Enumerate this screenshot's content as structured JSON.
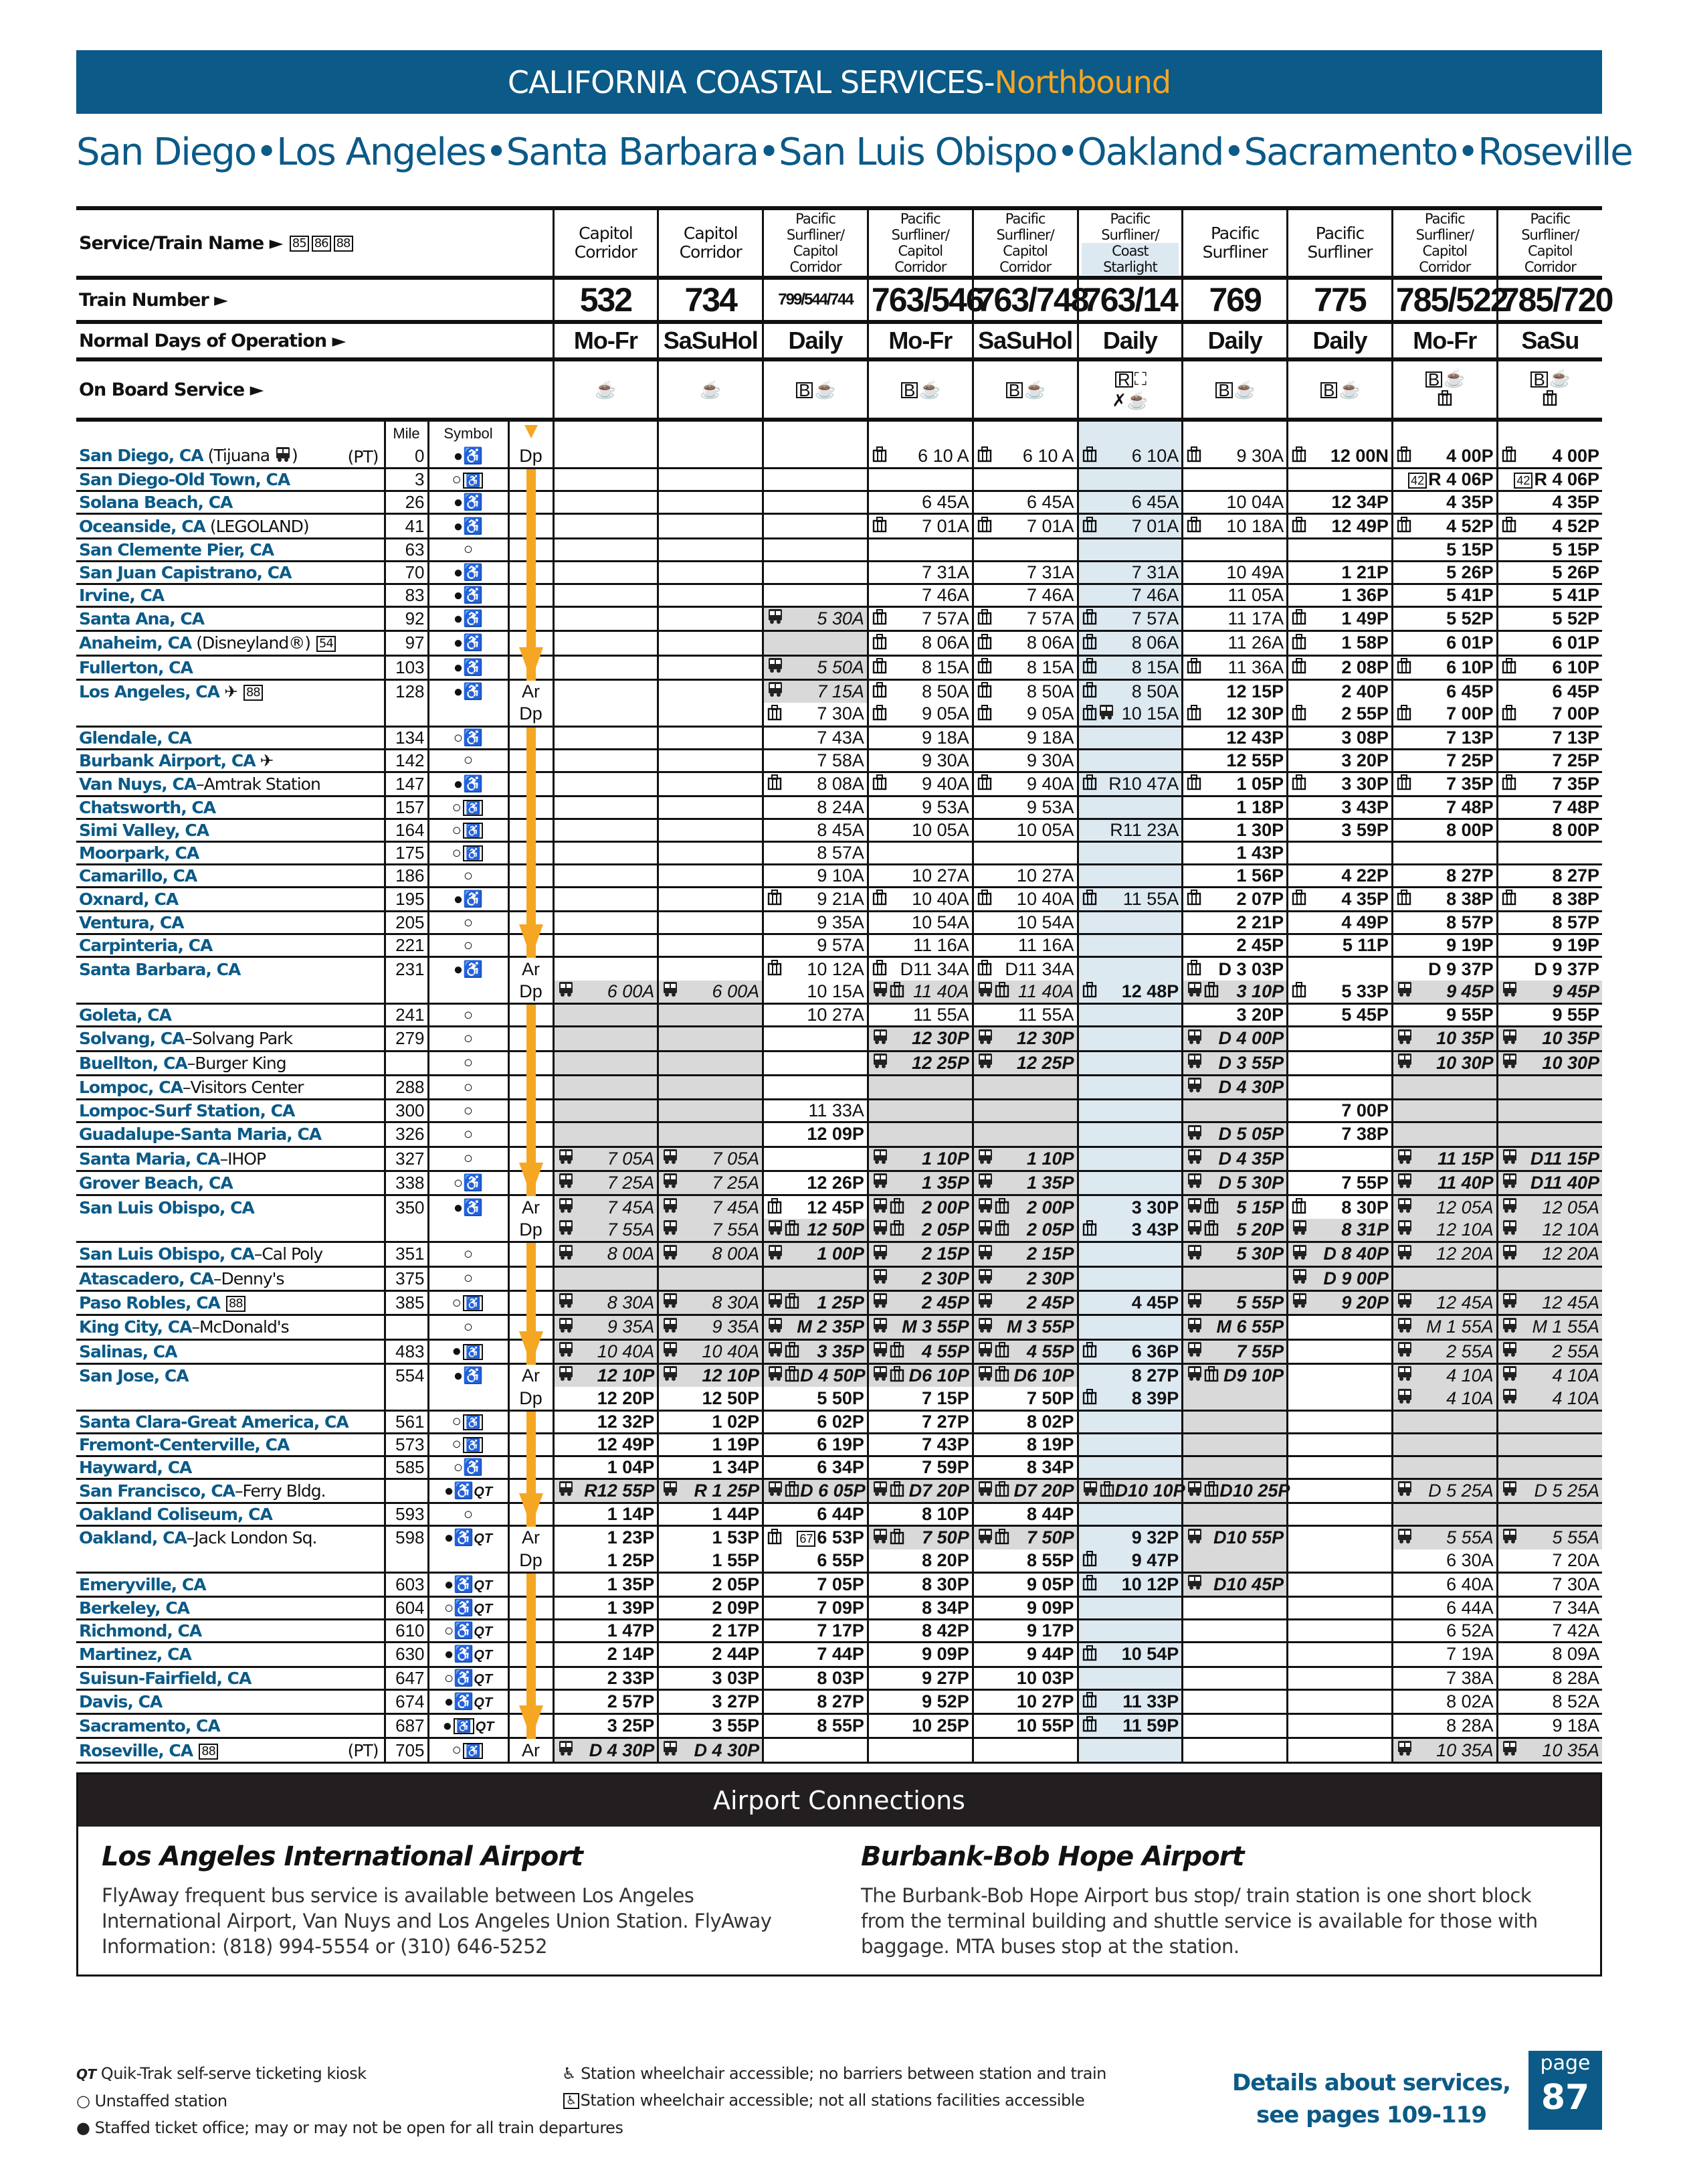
{
  "title": {
    "main": "CALIFORNIA COASTAL SERVICES-",
    "direction": "Northbound"
  },
  "route": [
    "San Diego",
    "•",
    "Los Angeles",
    "•",
    "Santa Barbara",
    "•",
    "San Luis Obispo",
    "•",
    "Oakland",
    "•",
    "Sacramento",
    "•",
    "Roseville"
  ],
  "labels": {
    "service": "Service/Train Name ►",
    "service_notes": [
      "85",
      "86",
      "88"
    ],
    "train_number": "Train Number ►",
    "days": "Normal Days of Operation ►",
    "onboard": "On Board Service ►",
    "mile": "Mile",
    "symbol": "Symbol"
  },
  "colors": {
    "brand": "#0b5a87",
    "accent": "#f5a623",
    "thruway_bus_shading": "#d9d9d9",
    "coast_starlight_shading": "#dde9f1"
  },
  "columns": [
    {
      "service": [
        "Capitol",
        "Corridor"
      ],
      "number": "532",
      "days": "Mo-Fr",
      "onboard": [
        "cafe"
      ]
    },
    {
      "service": [
        "Capitol",
        "Corridor"
      ],
      "number": "734",
      "days": "SaSuHol",
      "onboard": [
        "cafe"
      ]
    },
    {
      "service": [
        "Pacific",
        "Surfliner/",
        "Capitol",
        "Corridor"
      ],
      "number": "799/544/744",
      "days": "Daily",
      "onboard": [
        "bistro",
        "cafe"
      ]
    },
    {
      "service": [
        "Pacific",
        "Surfliner/",
        "Capitol",
        "Corridor"
      ],
      "number": "763/546",
      "days": "Mo-Fr",
      "onboard": [
        "bistro",
        "cafe"
      ]
    },
    {
      "service": [
        "Pacific",
        "Surfliner/",
        "Capitol",
        "Corridor"
      ],
      "number": "763/748",
      "days": "SaSuHol",
      "onboard": [
        "bistro",
        "cafe"
      ]
    },
    {
      "service": [
        "Pacific",
        "Surfliner/",
        "Coast",
        "Starlight"
      ],
      "number": "763/14",
      "days": "Daily",
      "onboard": [
        "reserved",
        "sleeper",
        "dining",
        "cafe"
      ]
    },
    {
      "service": [
        "Pacific",
        "Surfliner"
      ],
      "number": "769",
      "days": "Daily",
      "onboard": [
        "bistro",
        "cafe"
      ]
    },
    {
      "service": [
        "Pacific",
        "Surfliner"
      ],
      "number": "775",
      "days": "Daily",
      "onboard": [
        "bistro",
        "cafe"
      ]
    },
    {
      "service": [
        "Pacific",
        "Surfliner/",
        "Capitol",
        "Corridor"
      ],
      "number": "785/522",
      "days": "Mo-Fr",
      "onboard": [
        "bistro",
        "cafe",
        "checked-baggage"
      ]
    },
    {
      "service": [
        "Pacific",
        "Surfliner/",
        "Capitol",
        "Corridor"
      ],
      "number": "785/720",
      "days": "SaSu",
      "onboard": [
        "bistro",
        "cafe",
        "checked-baggage"
      ]
    }
  ],
  "cell_legend": {
    "g": "thruway bus segment shading",
    "i": "bus time",
    "b": "bus-icon",
    "l": "checked-baggage-icon"
  },
  "rows": [
    {
      "st": "San Diego, CA",
      "ex": " (Tijuana {bus})",
      "pt": "(PT)",
      "mi": "0",
      "sy": "FA",
      "ad": "Dp",
      "c": [
        "",
        "",
        "",
        "l|6 10 A",
        "l|6 10 A",
        "l|6 10A",
        "l|9 30A",
        "l|12 00N",
        "l|4 00P",
        "l|4 00P"
      ]
    },
    {
      "st": "San Diego-Old Town, CA",
      "mi": "3",
      "sy": "OX",
      "c": [
        "",
        "",
        "",
        "",
        "",
        "",
        "",
        "",
        "|[42]R 4 06P",
        "|[42]R 4 06P"
      ]
    },
    {
      "st": "Solana Beach, CA",
      "mi": "26",
      "sy": "FA",
      "c": [
        "",
        "",
        "",
        "6 45A",
        "6 45A",
        "6 45A",
        "10 04A",
        "12 34P",
        "4 35P",
        "4 35P"
      ]
    },
    {
      "st": "Oceanside, CA",
      "ex": " (LEGOLAND)",
      "mi": "41",
      "sy": "FA",
      "c": [
        "",
        "",
        "",
        "l|7 01A",
        "l|7 01A",
        "l|7 01A",
        "l|10 18A",
        "l|12 49P",
        "l|4 52P",
        "l|4 52P"
      ]
    },
    {
      "st": "San Clemente Pier, CA",
      "mi": "63",
      "sy": "O",
      "c": [
        "",
        "",
        "",
        "",
        "",
        "",
        "",
        "",
        "5 15P",
        "5 15P"
      ]
    },
    {
      "st": "San Juan Capistrano, CA",
      "mi": "70",
      "sy": "FA",
      "c": [
        "",
        "",
        "",
        "7 31A",
        "7 31A",
        "7 31A",
        "10 49A",
        "1 21P",
        "5 26P",
        "5 26P"
      ]
    },
    {
      "st": "Irvine, CA",
      "mi": "83",
      "sy": "FA",
      "c": [
        "",
        "",
        "",
        "7 46A",
        "7 46A",
        "7 46A",
        "11 05A",
        "1 36P",
        "5 41P",
        "5 41P"
      ]
    },
    {
      "st": "Santa Ana, CA",
      "mi": "92",
      "sy": "FA",
      "c": [
        "",
        "",
        "gib|5 30A",
        "l|7 57A",
        "l|7 57A",
        "l|7 57A",
        "11 17A",
        "l|1 49P",
        "5 52P",
        "5 52P"
      ]
    },
    {
      "st": "Anaheim, CA",
      "ex": " (Disneyland®) [54]",
      "mi": "97",
      "sy": "FA",
      "c": [
        "",
        "",
        "g|",
        "l|8 06A",
        "l|8 06A",
        "l|8 06A",
        "11 26A",
        "l|1 58P",
        "6 01P",
        "6 01P"
      ]
    },
    {
      "st": "Fullerton, CA",
      "mi": "103",
      "sy": "FA",
      "c": [
        "",
        "",
        "gib|5 50A",
        "l|8 15A",
        "l|8 15A",
        "l|8 15A",
        "l|11 36A",
        "l|2 08P",
        "l|6 10P",
        "l|6 10P"
      ]
    },
    {
      "st": "Los Angeles, CA",
      "ex": " ✈ [88]",
      "mi": "128",
      "sy": "FA",
      "ad": "Ar",
      "c": [
        "",
        "",
        "gib|7 15A",
        "l|8 50A",
        "l|8 50A",
        "l|8 50A",
        "12 15P",
        "2 40P",
        "6 45P",
        "6 45P"
      ]
    },
    {
      "ad": "Dp",
      "c": [
        "",
        "",
        "l|7 30A",
        "l|9 05A",
        "l|9 05A",
        "lb|10 15A",
        "l|12 30P",
        "l|2 55P",
        "l|7 00P",
        "l|7 00P"
      ]
    },
    {
      "st": "Glendale, CA",
      "mi": "134",
      "sy": "OA",
      "c": [
        "",
        "",
        "7 43A",
        "9 18A",
        "9 18A",
        "",
        "12 43P",
        "3 08P",
        "7 13P",
        "7 13P"
      ]
    },
    {
      "st": "Burbank Airport, CA",
      "ex": " ✈",
      "mi": "142",
      "sy": "O",
      "c": [
        "",
        "",
        "7 58A",
        "9 30A",
        "9 30A",
        "",
        "12 55P",
        "3 20P",
        "7 25P",
        "7 25P"
      ]
    },
    {
      "st": "Van Nuys, CA",
      "ex": "–Amtrak Station",
      "mi": "147",
      "sy": "FA",
      "c": [
        "",
        "",
        "l|8 08A",
        "l|9 40A",
        "l|9 40A",
        "l|R10 47A",
        "l|1 05P",
        "l|3 30P",
        "l|7 35P",
        "l|7 35P"
      ]
    },
    {
      "st": "Chatsworth, CA",
      "mi": "157",
      "sy": "OX",
      "c": [
        "",
        "",
        "8 24A",
        "9 53A",
        "9 53A",
        "",
        "1 18P",
        "3 43P",
        "7 48P",
        "7 48P"
      ]
    },
    {
      "st": "Simi Valley, CA",
      "mi": "164",
      "sy": "OX",
      "c": [
        "",
        "",
        "8 45A",
        "10 05A",
        "10 05A",
        "R11 23A",
        "1 30P",
        "3 59P",
        "8 00P",
        "8 00P"
      ]
    },
    {
      "st": "Moorpark, CA",
      "mi": "175",
      "sy": "OX",
      "c": [
        "",
        "",
        "8 57A",
        "",
        "",
        "",
        "1 43P",
        "",
        "",
        ""
      ]
    },
    {
      "st": "Camarillo, CA",
      "mi": "186",
      "sy": "O",
      "c": [
        "",
        "",
        "9 10A",
        "10 27A",
        "10 27A",
        "",
        "1 56P",
        "4 22P",
        "8 27P",
        "8 27P"
      ]
    },
    {
      "st": "Oxnard, CA",
      "mi": "195",
      "sy": "FA",
      "c": [
        "",
        "",
        "l|9 21A",
        "l|10 40A",
        "l|10 40A",
        "l|11 55A",
        "l|2 07P",
        "l|4 35P",
        "l|8 38P",
        "l|8 38P"
      ]
    },
    {
      "st": "Ventura, CA",
      "mi": "205",
      "sy": "O",
      "c": [
        "",
        "",
        "9 35A",
        "10 54A",
        "10 54A",
        "",
        "2 21P",
        "4 49P",
        "8 57P",
        "8 57P"
      ]
    },
    {
      "st": "Carpinteria, CA",
      "mi": "221",
      "sy": "O",
      "c": [
        "",
        "",
        "9 57A",
        "11 16A",
        "11 16A",
        "",
        "2 45P",
        "5 11P",
        "9 19P",
        "9 19P"
      ]
    },
    {
      "st": "Santa Barbara, CA",
      "mi": "231",
      "sy": "FA",
      "ad": "Ar",
      "c": [
        "",
        "",
        "l|10 12A",
        "l|D11 34A",
        "l|D11 34A",
        "",
        "l|D 3 03P",
        "",
        "D 9 37P",
        "D 9 37P"
      ]
    },
    {
      "ad": "Dp",
      "c": [
        "gib|6 00A",
        "gib|6 00A",
        "10 15A",
        "gibl|11 40A",
        "gibl|11 40A",
        "l|12 48P",
        "gibl|3 10P",
        "l|5 33P",
        "gib|9 45P",
        "gib|9 45P"
      ]
    },
    {
      "st": "Goleta, CA",
      "mi": "241",
      "sy": "O",
      "c": [
        "g|",
        "g|",
        "10 27A",
        "11 55A",
        "11 55A",
        "",
        "3 20P",
        "5 45P",
        "9 55P",
        "9 55P"
      ]
    },
    {
      "st": "Solvang, CA",
      "ex": "–Solvang Park",
      "mi": "279",
      "sy": "O",
      "c": [
        "g|",
        "g|",
        "",
        "gib|12 30P",
        "gib|12 30P",
        "",
        "gib|D 4 00P",
        "",
        "gib|10 35P",
        "gib|10 35P"
      ]
    },
    {
      "st": "Buellton, CA",
      "ex": "–Burger King",
      "mi": "",
      "sy": "O",
      "c": [
        "g|",
        "g|",
        "",
        "gib|12 25P",
        "gib|12 25P",
        "",
        "gib|D 3 55P",
        "",
        "gib|10 30P",
        "gib|10 30P"
      ]
    },
    {
      "st": "Lompoc, CA",
      "ex": "–Visitors Center",
      "mi": "288",
      "sy": "O",
      "c": [
        "g|",
        "g|",
        "",
        "g|",
        "g|",
        "",
        "gib|D 4 30P",
        "",
        "g|",
        "g|"
      ]
    },
    {
      "st": "Lompoc-Surf Station, CA",
      "mi": "300",
      "sy": "O",
      "c": [
        "g|",
        "g|",
        "11 33A",
        "g|",
        "g|",
        "",
        "g|",
        "7 00P",
        "g|",
        "g|"
      ]
    },
    {
      "st": "Guadalupe-Santa Maria, CA",
      "mi": "326",
      "sy": "O",
      "c": [
        "g|",
        "g|",
        "12 09P",
        "g|",
        "g|",
        "",
        "gib|D 5 05P",
        "7 38P",
        "g|",
        "g|"
      ]
    },
    {
      "st": "Santa Maria, CA",
      "ex": "–IHOP",
      "mi": "327",
      "sy": "O",
      "c": [
        "gib|7 05A",
        "gib|7 05A",
        "",
        "gib|1 10P",
        "gib|1 10P",
        "",
        "gib|D 4 35P",
        "",
        "gib|11 15P",
        "gib|D11 15P"
      ]
    },
    {
      "st": "Grover Beach, CA",
      "mi": "338",
      "sy": "OA",
      "c": [
        "gib|7 25A",
        "gib|7 25A",
        "12 26P",
        "gib|1 35P",
        "gib|1 35P",
        "",
        "gib|D 5 30P",
        "7 55P",
        "gib|11 40P",
        "gib|D11 40P"
      ]
    },
    {
      "st": "San Luis Obispo, CA",
      "mi": "350",
      "sy": "FA",
      "ad": "Ar",
      "c": [
        "gib|7 45A",
        "gib|7 45A",
        "l|12 45P",
        "gibl|2 00P",
        "gibl|2 00P",
        "3 30P",
        "gibl|5 15P",
        "l|8 30P",
        "gib|12 05A",
        "gib|12 05A"
      ]
    },
    {
      "ad": "Dp",
      "c": [
        "gib|7 55A",
        "gib|7 55A",
        "gibl|12 50P",
        "gibl|2 05P",
        "gibl|2 05P",
        "l|3 43P",
        "gibl|5 20P",
        "gib|8 31P",
        "gib|12 10A",
        "gib|12 10A"
      ]
    },
    {
      "st": "San Luis Obispo, CA",
      "ex": "–Cal Poly",
      "mi": "351",
      "sy": "O",
      "c": [
        "gib|8 00A",
        "gib|8 00A",
        "gib|1 00P",
        "gib|2 15P",
        "gib|2 15P",
        "",
        "gib|5 30P",
        "gib|D 8 40P",
        "gib|12 20A",
        "gib|12 20A"
      ]
    },
    {
      "st": "Atascadero, CA",
      "ex": "–Denny's",
      "mi": "375",
      "sy": "O",
      "c": [
        "g|",
        "g|",
        "g|",
        "gib|2 30P",
        "gib|2 30P",
        "",
        "g|",
        "gib|D 9 00P",
        "g|",
        "g|"
      ]
    },
    {
      "st": "Paso Robles, CA",
      "ex": " [88]",
      "mi": "385",
      "sy": "OX",
      "c": [
        "gib|8 30A",
        "gib|8 30A",
        "gibl|1 25P",
        "gib|2 45P",
        "gib|2 45P",
        "4 45P",
        "gib|5 55P",
        "gib|9 20P",
        "gib|12 45A",
        "gib|12 45A"
      ]
    },
    {
      "st": "King City, CA",
      "ex": "–McDonald's",
      "mi": "",
      "sy": "O",
      "c": [
        "gib|9 35A",
        "gib|9 35A",
        "gib|M 2 35P",
        "gib|M 3 55P",
        "gib|M 3 55P",
        "",
        "gib|M 6 55P",
        "",
        "gib|M 1 55A",
        "gib|M 1 55A"
      ]
    },
    {
      "st": "Salinas, CA",
      "mi": "483",
      "sy": "FX",
      "c": [
        "gib|10 40A",
        "gib|10 40A",
        "gibl|3 35P",
        "gibl|4 55P",
        "gibl|4 55P",
        "l|6 36P",
        "gib|7 55P",
        "",
        "gib|2 55A",
        "gib|2 55A"
      ]
    },
    {
      "st": "San Jose, CA",
      "mi": "554",
      "sy": "FA",
      "ad": "Ar",
      "c": [
        "gib|12 10P",
        "gib|12 10P",
        "gibl|D 4 50P",
        "gibl|D6 10P",
        "gibl|D6 10P",
        "8 27P",
        "gibl|D9 10P",
        "",
        "gib|4 10A",
        "gib|4 10A"
      ]
    },
    {
      "ad": "Dp",
      "c": [
        "12 20P",
        "12 50P",
        "5 50P",
        "7 15P",
        "7 50P",
        "l|8 39P",
        "g|",
        "",
        "gib|4 10A",
        "gib|4 10A"
      ]
    },
    {
      "st": "Santa Clara-Great America, CA",
      "mi": "561",
      "sy": "OX",
      "c": [
        "12 32P",
        "1 02P",
        "6 02P",
        "7 27P",
        "8 02P",
        "",
        "g|",
        "",
        "g|",
        "g|"
      ]
    },
    {
      "st": "Fremont-Centerville, CA",
      "mi": "573",
      "sy": "OX",
      "c": [
        "12 49P",
        "1 19P",
        "6 19P",
        "7 43P",
        "8 19P",
        "",
        "g|",
        "",
        "g|",
        "g|"
      ]
    },
    {
      "st": "Hayward, CA",
      "mi": "585",
      "sy": "OA",
      "c": [
        "1 04P",
        "1 34P",
        "6 34P",
        "7 59P",
        "8 34P",
        "",
        "g|",
        "",
        "g|",
        "g|"
      ]
    },
    {
      "st": "San Francisco, CA",
      "ex": "–Ferry Bldg.",
      "mi": "",
      "sy": "FAQ",
      "c": [
        "gib|R12 55P",
        "gib|R 1 25P",
        "gibl|D 6 05P",
        "gibl|D7 20P",
        "gibl|D7 20P",
        "gibl|D10 10P",
        "gibl|D10 25P",
        "",
        "gib|D 5 25A",
        "gib|D 5 25A"
      ]
    },
    {
      "st": "Oakland Coliseum, CA",
      "mi": "593",
      "sy": "O",
      "c": [
        "1 14P",
        "1 44P",
        "6 44P",
        "8 10P",
        "8 44P",
        "",
        "g|",
        "",
        "g|",
        "g|"
      ]
    },
    {
      "st": "Oakland, CA",
      "ex": "–Jack London Sq.",
      "mi": "598",
      "sy": "FAQ",
      "ad": "Ar",
      "c": [
        "1 23P",
        "1 53P",
        "l|[67]6 53P",
        "gibl|7 50P",
        "gibl|7 50P",
        "9 32P",
        "gib|D10 55P",
        "",
        "gib|5 55A",
        "gib|5 55A"
      ]
    },
    {
      "ad": "Dp",
      "c": [
        "1 25P",
        "1 55P",
        "6 55P",
        "8 20P",
        "8 55P",
        "l|9 47P",
        "g|",
        "",
        "6 30A",
        "7 20A"
      ]
    },
    {
      "st": "Emeryville, CA",
      "mi": "603",
      "sy": "FAQ",
      "c": [
        "1 35P",
        "2 05P",
        "7 05P",
        "8 30P",
        "9 05P",
        "l|10 12P",
        "gib|D10 45P",
        "",
        "6 40A",
        "7 30A"
      ]
    },
    {
      "st": "Berkeley, CA",
      "mi": "604",
      "sy": "OAQ",
      "c": [
        "1 39P",
        "2 09P",
        "7 09P",
        "8 34P",
        "9 09P",
        "",
        "",
        "",
        "6 44A",
        "7 34A"
      ]
    },
    {
      "st": "Richmond, CA",
      "mi": "610",
      "sy": "OAQ",
      "c": [
        "1 47P",
        "2 17P",
        "7 17P",
        "8 42P",
        "9 17P",
        "",
        "",
        "",
        "6 52A",
        "7 42A"
      ]
    },
    {
      "st": "Martinez, CA",
      "mi": "630",
      "sy": "FAQ",
      "c": [
        "2 14P",
        "2 44P",
        "7 44P",
        "9 09P",
        "9 44P",
        "l|10 54P",
        "",
        "",
        "7 19A",
        "8 09A"
      ]
    },
    {
      "st": "Suisun-Fairfield, CA",
      "mi": "647",
      "sy": "OAQ",
      "c": [
        "2 33P",
        "3 03P",
        "8 03P",
        "9 27P",
        "10 03P",
        "",
        "",
        "",
        "7 38A",
        "8 28A"
      ]
    },
    {
      "st": "Davis, CA",
      "mi": "674",
      "sy": "FAQ",
      "c": [
        "2 57P",
        "3 27P",
        "8 27P",
        "9 52P",
        "10 27P",
        "l|11 33P",
        "",
        "",
        "8 02A",
        "8 52A"
      ]
    },
    {
      "st": "Sacramento, CA",
      "mi": "687",
      "sy": "FXQ",
      "c": [
        "3 25P",
        "3 55P",
        "8 55P",
        "10 25P",
        "10 55P",
        "l|11 59P",
        "",
        "",
        "8 28A",
        "9 18A"
      ]
    },
    {
      "st": "Roseville, CA",
      "ex": " [88]",
      "pt": "(PT)",
      "mi": "705",
      "sy": "OX",
      "ad": "Ar",
      "c": [
        "gib|D 4 30P",
        "gib|D 4 30P",
        "",
        "",
        "",
        "",
        "",
        "",
        "gib|10 35A",
        "gib|10 35A"
      ]
    }
  ],
  "airport": {
    "header": "Airport Connections",
    "lax": {
      "title": "Los Angeles International Airport",
      "text": "FlyAway frequent bus service is available between Los Angeles International Airport, Van Nuys and Los Angeles Union Station. FlyAway Information: (818) 994-5554 or (310) 646-5252"
    },
    "bur": {
      "title": "Burbank-Bob Hope Airport",
      "text": "The Burbank-Bob Hope Airport bus stop/ train station is one short block from the terminal building and shuttle service is available for those with baggage. MTA buses stop at the station."
    }
  },
  "legend": {
    "qt": "Quik-Trak self-serve ticketing kiosk",
    "unstaffed": "Unstaffed station",
    "staffed": "Staffed ticket office; may or may not be open for all train departures",
    "wc": "Station wheelchair accessible; no barriers between station and train",
    "wc_boxed": "Station wheelchair accessible; not all stations facilities accessible"
  },
  "details": [
    "Details about services,",
    "see pages 109-119"
  ],
  "page": {
    "label": "page",
    "number": "87"
  }
}
